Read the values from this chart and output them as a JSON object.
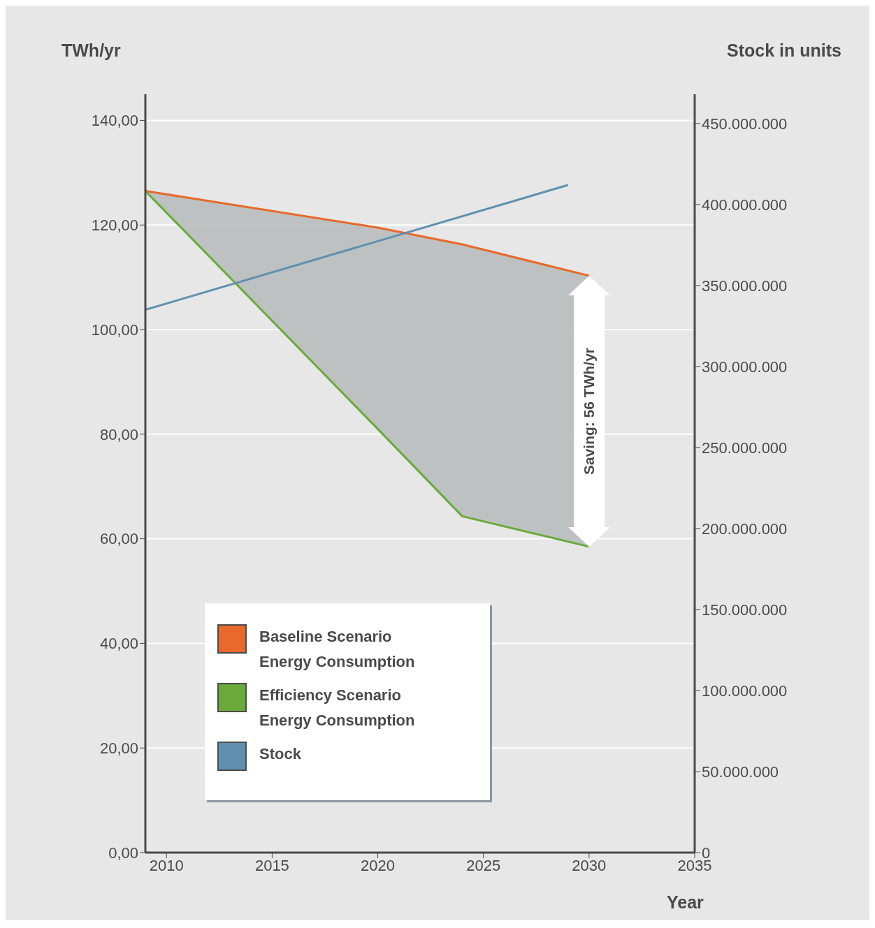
{
  "chart_data": {
    "type": "line",
    "xlabel": "Year",
    "ylabel": "TWh/yr",
    "y2label": "Stock in units",
    "xlim": [
      2009,
      2035
    ],
    "xticks": [
      2010,
      2015,
      2020,
      2025,
      2030,
      2035
    ],
    "ylim": [
      0,
      145
    ],
    "yticks": [
      {
        "value": 0,
        "label": "0,00"
      },
      {
        "value": 20,
        "label": "20,00"
      },
      {
        "value": 40,
        "label": "40,00"
      },
      {
        "value": 60,
        "label": "60,00"
      },
      {
        "value": 80,
        "label": "80,00"
      },
      {
        "value": 100,
        "label": "100,00"
      },
      {
        "value": 120,
        "label": "120,00"
      },
      {
        "value": 140,
        "label": "140,00"
      }
    ],
    "y2lim": [
      0,
      468000000
    ],
    "y2ticks": [
      0,
      {
        "value": 50000000,
        "label": "50.000.000"
      },
      {
        "value": 100000000,
        "label": "100.000.000"
      },
      {
        "value": 150000000,
        "label": "150.000.000"
      },
      {
        "value": 200000000,
        "label": "200.000.000"
      },
      {
        "value": 250000000,
        "label": "250.000.000"
      },
      {
        "value": 300000000,
        "label": "300.000.000"
      },
      {
        "value": 350000000,
        "label": "350.000.000"
      },
      {
        "value": 400000000,
        "label": "400.000.000"
      },
      {
        "value": 450000000,
        "label": "450.000.000"
      }
    ],
    "series": [
      {
        "name": "Baseline Scenario Energy Consumption",
        "color": "#e8692a",
        "x": [
          2009,
          2020,
          2024,
          2030
        ],
        "values": [
          126.5,
          119.5,
          116.3,
          110.3
        ]
      },
      {
        "name": "Efficiency Scenario Energy Consumption",
        "color": "#6aaa3a",
        "x": [
          2009,
          2020,
          2024,
          2030
        ],
        "values": [
          126.5,
          81,
          64.3,
          58.5
        ],
        "lower": [
          126.5,
          81,
          64.3,
          58.5
        ],
        "upper": [
          126.5,
          119.5,
          116.3,
          110.3
        ]
      },
      {
        "name": "Stock",
        "color": "#6090b0",
        "axis": "y2",
        "x": [
          2009,
          2029
        ],
        "values": [
          335000000,
          412000000
        ]
      }
    ],
    "annotations": [
      "Saving: 56 TWh/yr"
    ],
    "grid": "y",
    "legend": "bottom left",
    "marker": "none",
    "line_style": "solid"
  }
}
